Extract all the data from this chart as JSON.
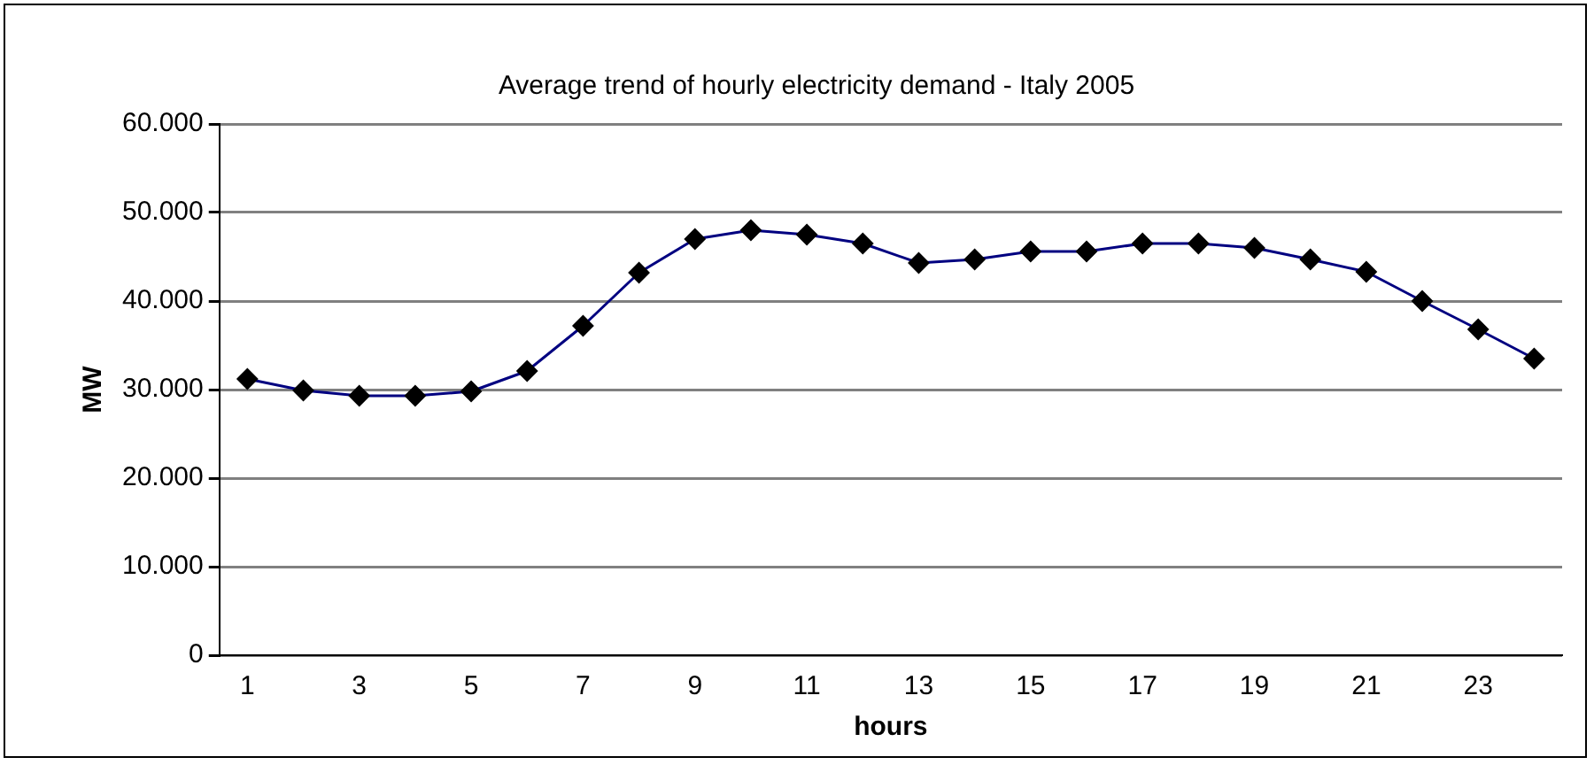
{
  "chart_data": {
    "type": "line",
    "title": "Average trend of hourly electricity demand - Italy 2005",
    "xlabel": "hours",
    "ylabel": "MW",
    "x": [
      1,
      2,
      3,
      4,
      5,
      6,
      7,
      8,
      9,
      10,
      11,
      12,
      13,
      14,
      15,
      16,
      17,
      18,
      19,
      20,
      21,
      22,
      23,
      24
    ],
    "xlim": [
      0.5,
      24.5
    ],
    "xticks": [
      1,
      3,
      5,
      7,
      9,
      11,
      13,
      15,
      17,
      19,
      21,
      23
    ],
    "series": [
      {
        "color": "#000080",
        "values": [
          31200,
          29900,
          29300,
          29300,
          29800,
          32100,
          37200,
          43200,
          47000,
          48000,
          47500,
          46500,
          44300,
          44700,
          45600,
          45600,
          46500,
          46500,
          46000,
          44700,
          43300,
          40000,
          36800,
          33500
        ]
      }
    ],
    "ylim": [
      0,
      60000
    ],
    "yticks": [
      0,
      {
        "value": 10000,
        "label": "10.000"
      },
      {
        "value": 20000,
        "label": "20.000"
      },
      {
        "value": 30000,
        "label": "30.000"
      },
      {
        "value": 40000,
        "label": "40.000"
      },
      {
        "value": 50000,
        "label": "50.000"
      },
      {
        "value": 60000,
        "label": "60.000"
      }
    ],
    "grid": "y",
    "legend": false,
    "marker": "diamond",
    "line_style": "solid"
  }
}
